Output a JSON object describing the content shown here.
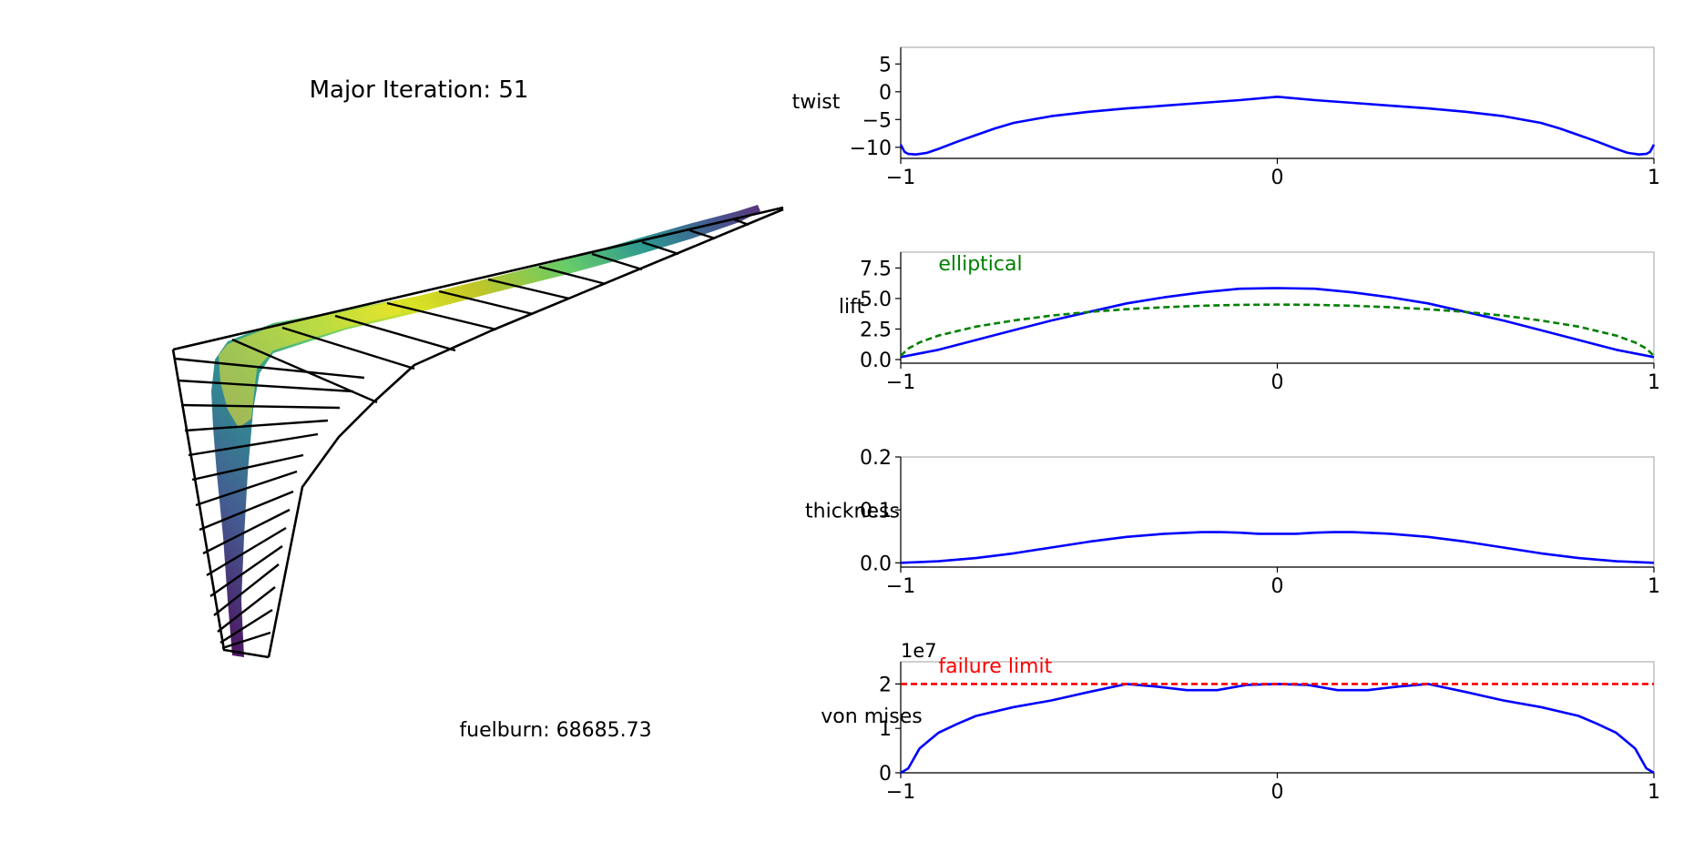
{
  "figure": {
    "title": "Major Iteration: 51",
    "fuelburn_text": "fuelburn: 68685.73",
    "colors": {
      "series": "#0000ff",
      "elliptical": "#008000",
      "failure": "#ff0000",
      "axes": "#b0b0b0",
      "wing_edge": "#000000"
    }
  },
  "wing_view": {
    "type": "3d-surface",
    "description_colormap": "viridis",
    "colormap_stops": [
      "#440154",
      "#3b528b",
      "#21918c",
      "#5ec962",
      "#fde725"
    ]
  },
  "chart_data": [
    {
      "type": "line",
      "name": "twist",
      "ylabel": "twist",
      "xlim": [
        -1,
        1
      ],
      "ylim": [
        -12,
        8
      ],
      "xticks": [
        -1,
        0,
        1
      ],
      "xtick_labels": [
        "−1",
        "0",
        "1"
      ],
      "yticks": [
        5,
        0,
        -5,
        -10
      ],
      "ytick_labels": [
        "5",
        "0",
        "−5",
        "−10"
      ],
      "series": [
        {
          "name": "twist",
          "color": "#0000ff",
          "style": "solid",
          "x": [
            -1,
            -0.99,
            -0.98,
            -0.96,
            -0.93,
            -0.9,
            -0.85,
            -0.8,
            -0.75,
            -0.7,
            -0.6,
            -0.5,
            -0.4,
            -0.3,
            -0.2,
            -0.1,
            0,
            0.1,
            0.2,
            0.3,
            0.4,
            0.5,
            0.6,
            0.7,
            0.75,
            0.8,
            0.85,
            0.9,
            0.93,
            0.96,
            0.98,
            0.99,
            1
          ],
          "y": [
            -9.5,
            -10.8,
            -11.2,
            -11.3,
            -11,
            -10.3,
            -9,
            -7.8,
            -6.6,
            -5.6,
            -4.4,
            -3.6,
            -3,
            -2.5,
            -2,
            -1.5,
            -0.9,
            -1.5,
            -2,
            -2.5,
            -3,
            -3.6,
            -4.4,
            -5.6,
            -6.6,
            -7.8,
            -9,
            -10.3,
            -11,
            -11.3,
            -11.2,
            -10.8,
            -9.5
          ]
        }
      ]
    },
    {
      "type": "line",
      "name": "lift",
      "ylabel": "lift",
      "xlim": [
        -1,
        1
      ],
      "ylim": [
        -0.3,
        8.8
      ],
      "xticks": [
        -1,
        0,
        1
      ],
      "xtick_labels": [
        "−1",
        "0",
        "1"
      ],
      "yticks": [
        7.5,
        5.0,
        2.5,
        0.0
      ],
      "ytick_labels": [
        "7.5",
        "5.0",
        "2.5",
        "0.0"
      ],
      "annotations": [
        {
          "text": "elliptical",
          "x": -0.9,
          "y": 7.3,
          "color": "#008000"
        }
      ],
      "series": [
        {
          "name": "lift",
          "color": "#0000ff",
          "style": "solid",
          "x": [
            -1,
            -0.9,
            -0.8,
            -0.7,
            -0.6,
            -0.5,
            -0.4,
            -0.3,
            -0.2,
            -0.1,
            0,
            0.1,
            0.2,
            0.3,
            0.4,
            0.5,
            0.6,
            0.7,
            0.8,
            0.9,
            1
          ],
          "y": [
            0.2,
            0.8,
            1.6,
            2.4,
            3.2,
            3.9,
            4.6,
            5.1,
            5.5,
            5.8,
            5.85,
            5.8,
            5.5,
            5.1,
            4.6,
            3.9,
            3.2,
            2.4,
            1.6,
            0.8,
            0.2
          ]
        },
        {
          "name": "elliptical",
          "color": "#008000",
          "style": "dashed",
          "x": [
            -1,
            -0.98,
            -0.95,
            -0.9,
            -0.8,
            -0.7,
            -0.6,
            -0.5,
            -0.4,
            -0.3,
            -0.2,
            -0.1,
            0,
            0.1,
            0.2,
            0.3,
            0.4,
            0.5,
            0.6,
            0.7,
            0.8,
            0.9,
            0.95,
            0.98,
            1
          ],
          "y": [
            0.3,
            0.9,
            1.4,
            1.96,
            2.7,
            3.2,
            3.6,
            3.9,
            4.12,
            4.29,
            4.41,
            4.48,
            4.5,
            4.48,
            4.41,
            4.29,
            4.12,
            3.9,
            3.6,
            3.2,
            2.7,
            1.96,
            1.4,
            0.9,
            0.3
          ]
        }
      ]
    },
    {
      "type": "line",
      "name": "thickness",
      "ylabel": "thickness",
      "xlim": [
        -1,
        1
      ],
      "ylim": [
        -0.008,
        0.2
      ],
      "xticks": [
        -1,
        0,
        1
      ],
      "xtick_labels": [
        "−1",
        "0",
        "1"
      ],
      "yticks": [
        0.2,
        0.1,
        0.0
      ],
      "ytick_labels": [
        "0.2",
        "0.1",
        "0.0"
      ],
      "series": [
        {
          "name": "thickness",
          "color": "#0000ff",
          "style": "solid",
          "x": [
            -1,
            -0.9,
            -0.8,
            -0.7,
            -0.6,
            -0.5,
            -0.4,
            -0.3,
            -0.2,
            -0.15,
            -0.1,
            -0.05,
            0,
            0.05,
            0.1,
            0.15,
            0.2,
            0.3,
            0.4,
            0.5,
            0.6,
            0.7,
            0.8,
            0.9,
            1
          ],
          "y": [
            0.0,
            0.003,
            0.009,
            0.018,
            0.029,
            0.04,
            0.049,
            0.055,
            0.058,
            0.058,
            0.057,
            0.055,
            0.055,
            0.055,
            0.057,
            0.058,
            0.058,
            0.055,
            0.049,
            0.04,
            0.029,
            0.018,
            0.009,
            0.003,
            0.0
          ]
        }
      ]
    },
    {
      "type": "line",
      "name": "von mises",
      "ylabel": "von mises",
      "offset_text": "1e7",
      "xlim": [
        -1,
        1
      ],
      "ylim": [
        0,
        2.5
      ],
      "xticks": [
        -1,
        0,
        1
      ],
      "xtick_labels": [
        "−1",
        "0",
        "1"
      ],
      "yticks": [
        2,
        1,
        0
      ],
      "ytick_labels": [
        "2",
        "1",
        "0"
      ],
      "annotations": [
        {
          "text": "failure limit",
          "x": -0.9,
          "y": 2.25,
          "color": "#ff0000"
        }
      ],
      "series": [
        {
          "name": "von mises",
          "color": "#0000ff",
          "style": "solid",
          "x": [
            -1,
            -0.98,
            -0.95,
            -0.9,
            -0.85,
            -0.8,
            -0.7,
            -0.6,
            -0.5,
            -0.4,
            -0.32,
            -0.24,
            -0.16,
            -0.08,
            0,
            0.08,
            0.16,
            0.24,
            0.32,
            0.4,
            0.5,
            0.6,
            0.7,
            0.8,
            0.85,
            0.9,
            0.95,
            0.98,
            1
          ],
          "y": [
            0.0,
            0.1,
            0.55,
            0.9,
            1.1,
            1.28,
            1.48,
            1.63,
            1.82,
            2.0,
            1.94,
            1.86,
            1.86,
            1.98,
            2.0,
            1.98,
            1.86,
            1.86,
            1.94,
            2.0,
            1.82,
            1.63,
            1.48,
            1.28,
            1.1,
            0.9,
            0.55,
            0.1,
            0.0
          ]
        },
        {
          "name": "failure limit",
          "color": "#ff0000",
          "style": "dashed",
          "x": [
            -1,
            1
          ],
          "y": [
            2,
            2
          ]
        }
      ]
    }
  ]
}
